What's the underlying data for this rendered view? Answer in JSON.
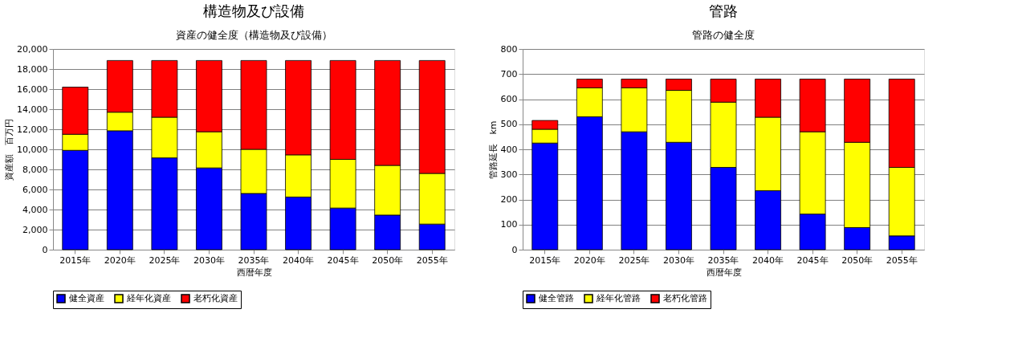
{
  "chart_data": [
    {
      "type": "bar",
      "title": "構造物及び設備",
      "subtitle": "資産の健全度（構造物及び設備）",
      "xlabel": "西暦年度",
      "ylabel": "資産額　百万円",
      "stacked": true,
      "categories": [
        "2015年",
        "2020年",
        "2025年",
        "2030年",
        "2035年",
        "2040年",
        "2045年",
        "2050年",
        "2055年"
      ],
      "series": [
        {
          "name": "健全資産",
          "color": "#0000ff",
          "values": [
            9900,
            11850,
            9150,
            8150,
            5600,
            5250,
            4150,
            3450,
            2550
          ]
        },
        {
          "name": "経年化資産",
          "color": "#ffff00",
          "values": [
            1600,
            1850,
            4050,
            3600,
            4400,
            4200,
            4850,
            4950,
            5050
          ]
        },
        {
          "name": "老朽化資産",
          "color": "#ff0000",
          "values": [
            4700,
            5150,
            5650,
            7100,
            8850,
            9400,
            9850,
            10450,
            11250
          ]
        }
      ],
      "ylim": [
        0,
        20000
      ],
      "yticks": [
        {
          "value": 0,
          "label": "0"
        },
        {
          "value": 2000,
          "label": "2,000"
        },
        {
          "value": 4000,
          "label": "4,000"
        },
        {
          "value": 6000,
          "label": "6,000"
        },
        {
          "value": 8000,
          "label": "8,000"
        },
        {
          "value": 10000,
          "label": "10,000"
        },
        {
          "value": 12000,
          "label": "12,000"
        },
        {
          "value": 14000,
          "label": "14,000"
        },
        {
          "value": 16000,
          "label": "16,000"
        },
        {
          "value": 18000,
          "label": "18,000"
        },
        {
          "value": 20000,
          "label": "20,000"
        }
      ],
      "grid": "y",
      "legend": "bottom"
    },
    {
      "type": "bar",
      "title": "管路",
      "subtitle": "管路の健全度",
      "xlabel": "西暦年度",
      "ylabel": "管路延長　km",
      "stacked": true,
      "categories": [
        "2015年",
        "2020年",
        "2025年",
        "2030年",
        "2035年",
        "2040年",
        "2045年",
        "2050年",
        "2055年"
      ],
      "series": [
        {
          "name": "健全管路",
          "color": "#0000ff",
          "values": [
            425,
            530,
            470,
            428,
            328,
            235,
            142,
            88,
            55
          ]
        },
        {
          "name": "経年化管路",
          "color": "#ffff00",
          "values": [
            55,
            115,
            175,
            207,
            260,
            293,
            328,
            340,
            273
          ]
        },
        {
          "name": "老朽化管路",
          "color": "#ff0000",
          "values": [
            35,
            35,
            35,
            45,
            92,
            152,
            210,
            252,
            352
          ]
        }
      ],
      "ylim": [
        0,
        800
      ],
      "yticks": [
        0,
        100,
        200,
        300,
        400,
        500,
        600,
        700,
        800
      ],
      "grid": "y",
      "legend": "bottom"
    }
  ]
}
